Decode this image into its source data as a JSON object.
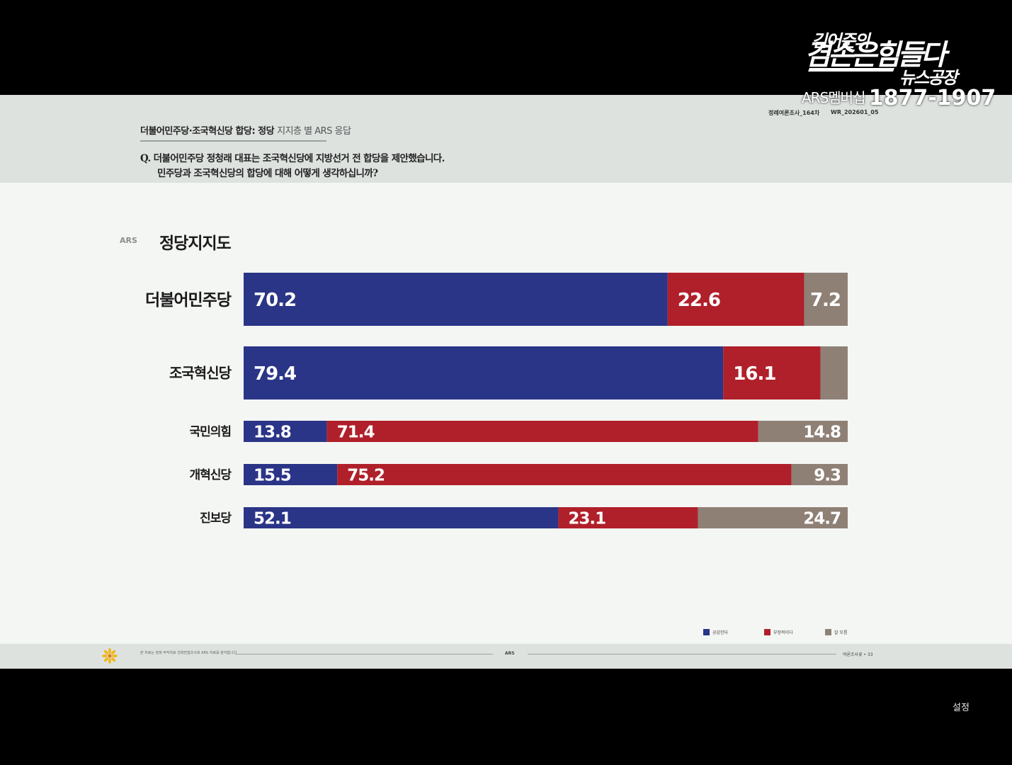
{
  "header": {
    "title_bold": "더불어민주당·조국혁신당 합당: 정당",
    "title_light": "지지층 별 ARS 응답",
    "question_line1": "Q. 더불어민주당 정청래 대표는 조국혁신당에 지방선거 전 합당을 제안했습니다.",
    "question_line2": "민주당과 조국혁신당의 합당에 대해 어떻게 생각하십니까?",
    "meta_left": "정례여론조사_164차",
    "meta_right": "WR_202601_05"
  },
  "section": {
    "tag": "ARS",
    "title": "정당지지도"
  },
  "chart_data": {
    "type": "bar",
    "orientation": "horizontal",
    "stacked": true,
    "percent": true,
    "xlim": [
      0,
      100
    ],
    "categories": [
      "더불어민주당",
      "조국혁신당",
      "국민의힘",
      "개혁신당",
      "진보당"
    ],
    "series": [
      {
        "name": "공감한다",
        "color": "#2a3587",
        "values": [
          70.2,
          79.4,
          13.8,
          15.5,
          52.1
        ],
        "labels": [
          "70.2",
          "79.4",
          "13.8",
          "15.5",
          "52.1"
        ]
      },
      {
        "name": "부정적이다",
        "color": "#b0202a",
        "values": [
          22.6,
          16.1,
          71.4,
          75.2,
          23.1
        ],
        "labels": [
          "22.6",
          "16.1",
          "71.4",
          "75.2",
          "23.1"
        ]
      },
      {
        "name": "잘 모름",
        "color": "#8f8076",
        "values": [
          7.2,
          4.5,
          14.8,
          9.3,
          24.7
        ],
        "labels": [
          "7.2",
          "",
          "14.8",
          "9.3",
          "24.7"
        ]
      }
    ],
    "legend_position": "bottom-right",
    "grid": false
  },
  "footer": {
    "note": "본 자료는 정파·무작위표 전화면접조사로 ARS 자료를 분석합니다",
    "middle": "ARS",
    "right": "여론조사꽃 • 33"
  },
  "overlay": {
    "brand_line1": "김어준의",
    "brand_line2": "겸손은힘들다",
    "brand_line3": "뉴스공장",
    "sub_label": "ARS멤버십",
    "sub_number": "1877-1907",
    "settings_label": "설정"
  }
}
